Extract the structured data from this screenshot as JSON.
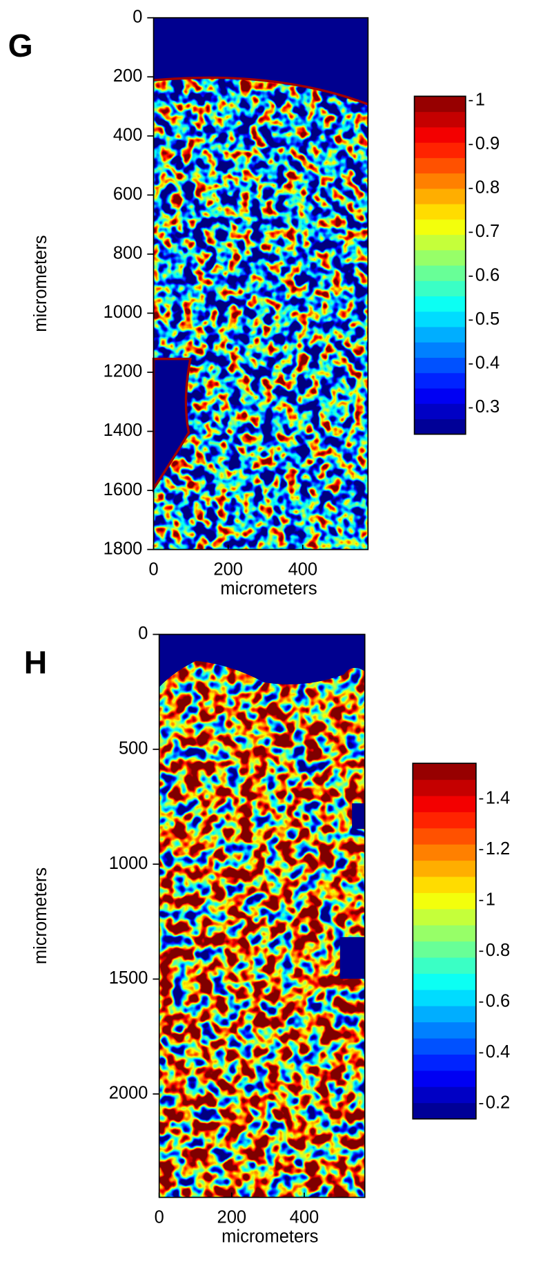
{
  "chart_data": [
    {
      "type": "heatmap",
      "panel_label": "G",
      "xlabel": "micrometers",
      "ylabel": "micrometers",
      "xlim": [
        0,
        575
      ],
      "xticks": [
        0,
        200,
        400
      ],
      "ylim": [
        0,
        1800
      ],
      "yticks": [
        0,
        200,
        400,
        600,
        800,
        1000,
        1200,
        1400,
        1600,
        1800
      ],
      "y_reversed": true,
      "colormap": "jet",
      "clim": [
        0.24,
        1.01
      ],
      "cticks": [
        0.3,
        0.4,
        0.5,
        0.6,
        0.7,
        0.8,
        0.9,
        1
      ]
    },
    {
      "type": "heatmap",
      "panel_label": "H",
      "xlabel": "micrometers",
      "ylabel": "micrometers",
      "xlim": [
        0,
        567
      ],
      "xticks": [
        0,
        200,
        400
      ],
      "ylim": [
        0,
        2450
      ],
      "yticks": [
        0,
        500,
        1000,
        1500,
        2000
      ],
      "y_reversed": true,
      "colormap": "jet",
      "clim": [
        0.14,
        1.54
      ],
      "cticks": [
        0.2,
        0.4,
        0.6,
        0.8,
        1,
        1.2,
        1.4
      ]
    }
  ]
}
